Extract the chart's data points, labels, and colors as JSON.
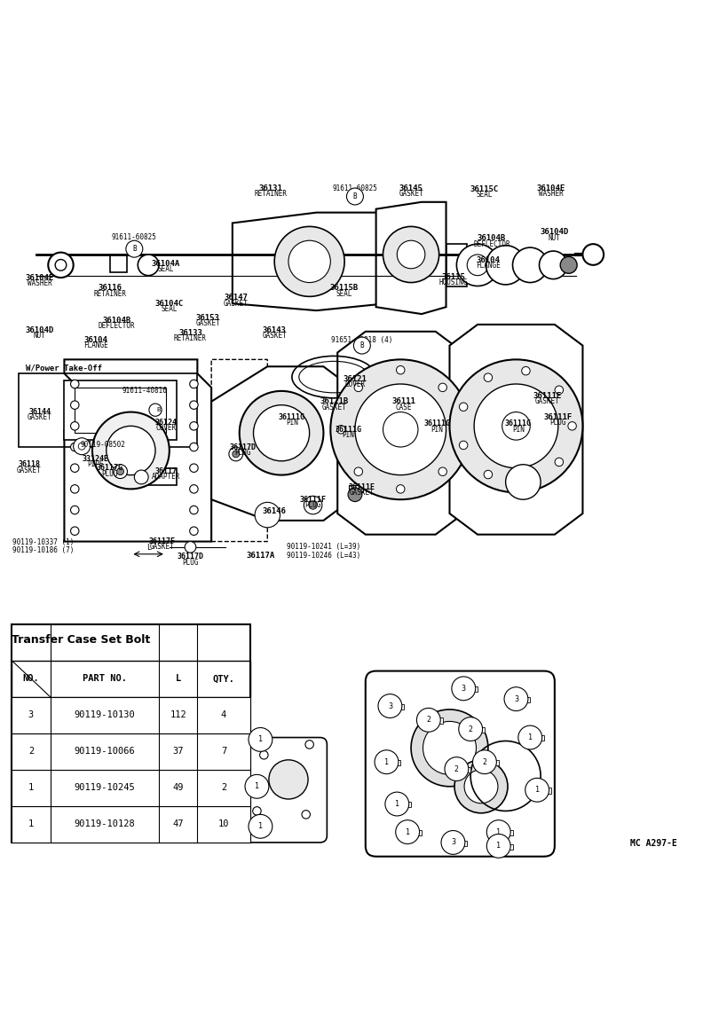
{
  "bg_color": "#ffffff",
  "line_color": "#000000",
  "table_title": "Transfer Case Set Bolt",
  "table_headers": [
    "NO.",
    "PART NO.",
    "L",
    "QTY."
  ],
  "table_rows": [
    [
      "1",
      "90119-10128",
      "47",
      "10"
    ],
    [
      "1",
      "90119-10245",
      "49",
      "2"
    ],
    [
      "2",
      "90119-10066",
      "37",
      "7"
    ],
    [
      "3",
      "90119-10130",
      "112",
      "4"
    ]
  ],
  "watermark": "MC A297-E"
}
